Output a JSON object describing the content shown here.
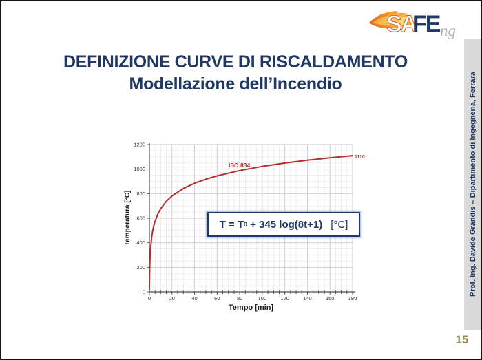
{
  "logo": {
    "sa": "SA",
    "fe": "FE",
    "ng": "ng"
  },
  "title": {
    "line1": "DEFINIZIONE CURVE DI RISCALDAMENTO",
    "line2": "Modellazione dell’Incendio"
  },
  "formula": {
    "lhs": "T = T",
    "sub": "0",
    "rhs": " + 345 log(8t+1)",
    "unit": "[°C]"
  },
  "sidebar": {
    "credit": "Prof. Ing. Davide Grandis – Dipartimento di Ingegneria, Ferrara"
  },
  "page": {
    "number": "15"
  },
  "colors": {
    "navy": "#1f3864",
    "curve_red": "#b02e2b",
    "gold": "#948a54",
    "strip_gray": "#d9d9d9",
    "grid_minor": "#e3e3ea",
    "grid_major": "#c9c9d2",
    "axis": "#4d4d4d"
  },
  "chart_data": {
    "type": "line",
    "title": "",
    "xlabel": "Tempo [min]",
    "ylabel": "Temperatura [°C]",
    "xlim": [
      0,
      180
    ],
    "ylim": [
      0,
      1200
    ],
    "x_ticks": [
      0,
      20,
      40,
      60,
      80,
      100,
      120,
      140,
      160,
      180
    ],
    "y_ticks": [
      0,
      200,
      400,
      600,
      800,
      1000,
      1200
    ],
    "x_minor_step": 5,
    "y_minor_step": 50,
    "grid": true,
    "legend_position": "none",
    "curve_label": "ISO 834",
    "end_label": "1110",
    "series": [
      {
        "name": "ISO 834",
        "color": "#b02e2b",
        "formula_note": "T = 20 + 345 log10(8t+1)",
        "points": [
          [
            0,
            20
          ],
          [
            0.25,
            185
          ],
          [
            0.5,
            261
          ],
          [
            1,
            349
          ],
          [
            2,
            445
          ],
          [
            3,
            502
          ],
          [
            4,
            544
          ],
          [
            5,
            576
          ],
          [
            7.5,
            636
          ],
          [
            10,
            678
          ],
          [
            15,
            739
          ],
          [
            20,
            781
          ],
          [
            30,
            842
          ],
          [
            40,
            885
          ],
          [
            50,
            918
          ],
          [
            60,
            945
          ],
          [
            80,
            988
          ],
          [
            100,
            1022
          ],
          [
            120,
            1049
          ],
          [
            140,
            1072
          ],
          [
            160,
            1092
          ],
          [
            180,
            1110
          ]
        ]
      }
    ]
  }
}
